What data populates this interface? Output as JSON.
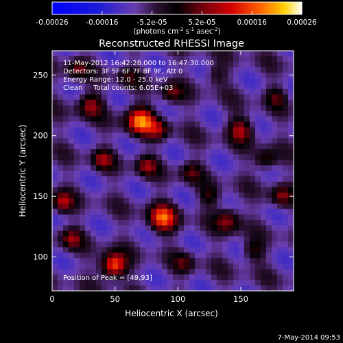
{
  "chart_data": {
    "type": "heatmap",
    "title": "Reconstructed RHESSI Image",
    "xlabel": "Heliocentric X (arcsec)",
    "ylabel": "Heliocentric Y (arcsec)",
    "xlim": [
      0,
      192
    ],
    "ylim": [
      72,
      270
    ],
    "xticks": [
      0,
      50,
      100,
      150
    ],
    "yticks": [
      100,
      150,
      200,
      250
    ],
    "colorbar": {
      "range": [
        -0.00026,
        0.00026
      ],
      "tick_labels": [
        "-0.00026",
        "-0.00016",
        "-5.2e-05",
        "5.2e-05",
        "0.00016",
        "0.00026"
      ],
      "unit_parts": [
        "(photons cm",
        "-2",
        " s",
        "-1",
        " asec",
        "-2",
        ")"
      ]
    },
    "annotations": [
      "11-May-2012 16:42:28.000 to 16:47:30.000",
      "Detectors: 3F 5F 6F 7F 8F 9F, Att 0",
      "Energy Range: 12.0 - 25.0 keV",
      "Clean     Total counts: 6.05E+03"
    ],
    "peak_note": "Position of Peak = [49,93]",
    "peak": [
      49,
      93
    ],
    "footer": "7-May-2014 09:53",
    "sources": [
      {
        "x": 49,
        "y": 93,
        "amp": 1.0,
        "s": 7
      },
      {
        "x": 70,
        "y": 212,
        "amp": 0.95,
        "s": 8
      },
      {
        "x": 88,
        "y": 132,
        "amp": 0.85,
        "s": 8
      },
      {
        "x": 30,
        "y": 225,
        "amp": 0.55,
        "s": 7
      },
      {
        "x": 40,
        "y": 180,
        "amp": 0.5,
        "s": 6
      },
      {
        "x": 75,
        "y": 175,
        "amp": 0.5,
        "s": 6
      },
      {
        "x": 85,
        "y": 205,
        "amp": 0.45,
        "s": 6
      },
      {
        "x": 150,
        "y": 205,
        "amp": 0.6,
        "s": 7
      },
      {
        "x": 140,
        "y": 130,
        "amp": 0.55,
        "s": 7
      },
      {
        "x": 8,
        "y": 145,
        "amp": 0.6,
        "s": 6
      },
      {
        "x": 15,
        "y": 115,
        "amp": 0.5,
        "s": 6
      },
      {
        "x": 95,
        "y": 235,
        "amp": 0.45,
        "s": 6
      },
      {
        "x": 170,
        "y": 180,
        "amp": 0.45,
        "s": 6
      },
      {
        "x": 182,
        "y": 150,
        "amp": 0.5,
        "s": 6
      },
      {
        "x": 160,
        "y": 105,
        "amp": 0.4,
        "s": 6
      },
      {
        "x": 110,
        "y": 170,
        "amp": 0.4,
        "s": 6
      },
      {
        "x": 125,
        "y": 150,
        "amp": 0.35,
        "s": 6
      },
      {
        "x": 105,
        "y": 95,
        "amp": 0.35,
        "s": 6
      },
      {
        "x": 20,
        "y": 255,
        "amp": 0.45,
        "s": 6
      },
      {
        "x": 60,
        "y": 248,
        "amp": 0.3,
        "s": 6
      },
      {
        "x": 130,
        "y": 250,
        "amp": 0.3,
        "s": 6
      },
      {
        "x": 178,
        "y": 232,
        "amp": 0.35,
        "s": 6
      }
    ]
  }
}
